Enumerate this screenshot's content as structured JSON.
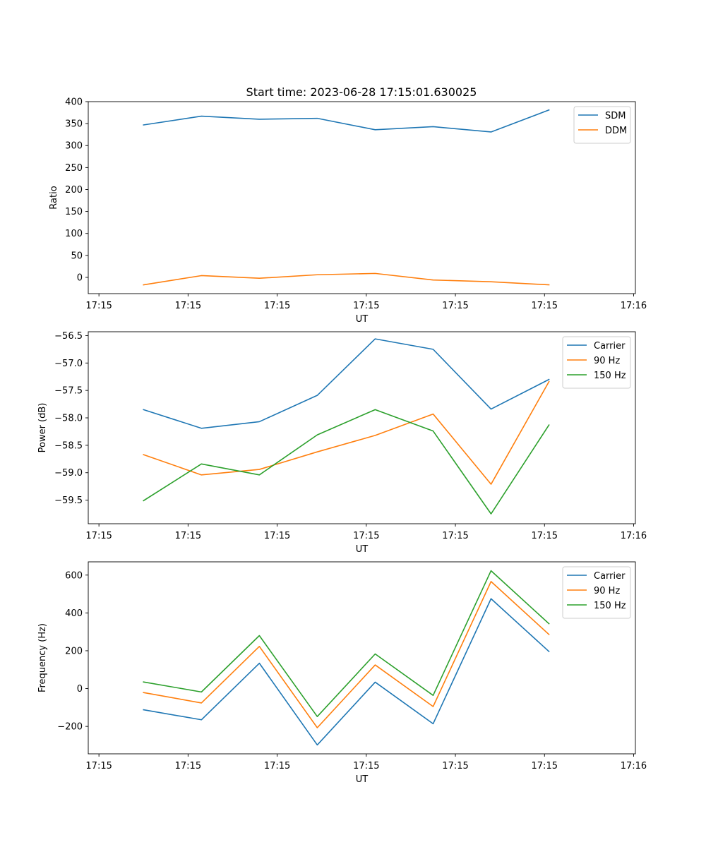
{
  "figure": {
    "title": "Start time: 2023-06-28 17:15:01.630025"
  },
  "colors": {
    "blue": "#1f77b4",
    "orange": "#ff7f0e",
    "green": "#2ca02c"
  },
  "chart_data": [
    {
      "type": "line",
      "title": "Start time: 2023-06-28 17:15:01.630025",
      "xlabel": "UT",
      "ylabel": "Ratio",
      "x_tick_labels": [
        "17:15",
        "17:15",
        "17:15",
        "17:15",
        "17:15",
        "17:15",
        "17:16"
      ],
      "x_tick_values": [
        0,
        1,
        2,
        3,
        4,
        5,
        6
      ],
      "xlim": [
        -0.12,
        6.02
      ],
      "ylim": [
        -37,
        400
      ],
      "yticks": [
        0,
        50,
        100,
        150,
        200,
        250,
        300,
        350,
        400
      ],
      "legend": "top-right",
      "x": [
        0.5,
        1.15,
        1.8,
        2.45,
        3.1,
        3.75,
        4.4,
        5.05
      ],
      "series": [
        {
          "name": "SDM",
          "color": "#1f77b4",
          "values": [
            347,
            367,
            360,
            362,
            336,
            343,
            331,
            381
          ]
        },
        {
          "name": "DDM",
          "color": "#ff7f0e",
          "values": [
            -17,
            4,
            -2,
            6,
            9,
            -6,
            -10,
            -17
          ]
        }
      ]
    },
    {
      "type": "line",
      "xlabel": "UT",
      "ylabel": "Power (dB)",
      "x_tick_labels": [
        "17:15",
        "17:15",
        "17:15",
        "17:15",
        "17:15",
        "17:15",
        "17:16"
      ],
      "x_tick_values": [
        0,
        1,
        2,
        3,
        4,
        5,
        6
      ],
      "xlim": [
        -0.12,
        6.02
      ],
      "ylim": [
        -59.93,
        -56.43
      ],
      "yticks": [
        -59.5,
        -59.0,
        -58.5,
        -58.0,
        -57.5,
        -57.0,
        -56.5
      ],
      "ytick_labels": [
        "−59.5",
        "−59.0",
        "−58.5",
        "−58.0",
        "−57.5",
        "−57.0",
        "−56.5"
      ],
      "legend": "top-right",
      "x": [
        0.5,
        1.15,
        1.8,
        2.45,
        3.1,
        3.75,
        4.4,
        5.05
      ],
      "series": [
        {
          "name": "Carrier",
          "color": "#1f77b4",
          "values": [
            -57.85,
            -58.19,
            -58.07,
            -57.59,
            -56.56,
            -56.75,
            -57.84,
            -57.3
          ]
        },
        {
          "name": "90 Hz",
          "color": "#ff7f0e",
          "values": [
            -58.67,
            -59.04,
            -58.94,
            -58.62,
            -58.32,
            -57.93,
            -59.21,
            -57.34
          ]
        },
        {
          "name": "150 Hz",
          "color": "#2ca02c",
          "values": [
            -59.51,
            -58.84,
            -59.04,
            -58.31,
            -57.85,
            -58.24,
            -59.75,
            -58.13
          ]
        }
      ]
    },
    {
      "type": "line",
      "xlabel": "UT",
      "ylabel": "Frequency (Hz)",
      "x_tick_labels": [
        "17:15",
        "17:15",
        "17:15",
        "17:15",
        "17:15",
        "17:15",
        "17:16"
      ],
      "x_tick_values": [
        0,
        1,
        2,
        3,
        4,
        5,
        6
      ],
      "xlim": [
        -0.12,
        6.02
      ],
      "ylim": [
        -345,
        670
      ],
      "yticks": [
        -200,
        0,
        200,
        400,
        600
      ],
      "ytick_labels": [
        "−200",
        "0",
        "200",
        "400",
        "600"
      ],
      "legend": "top-right",
      "x": [
        0.5,
        1.15,
        1.8,
        2.45,
        3.1,
        3.75,
        4.4,
        5.05
      ],
      "series": [
        {
          "name": "Carrier",
          "color": "#1f77b4",
          "values": [
            -112,
            -165,
            134,
            -298,
            34,
            -186,
            475,
            196
          ]
        },
        {
          "name": "90 Hz",
          "color": "#ff7f0e",
          "values": [
            -21,
            -76,
            223,
            -207,
            125,
            -95,
            566,
            286
          ]
        },
        {
          "name": "150 Hz",
          "color": "#2ca02c",
          "values": [
            35,
            -18,
            280,
            -148,
            183,
            -36,
            623,
            343
          ]
        }
      ]
    }
  ]
}
